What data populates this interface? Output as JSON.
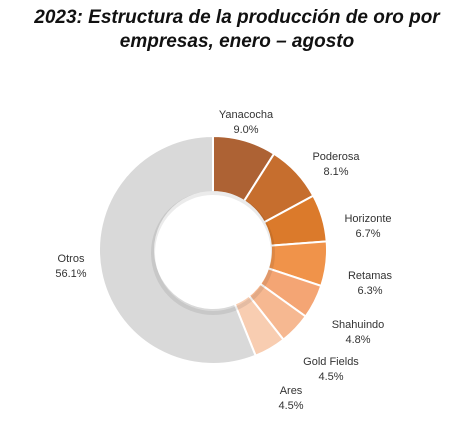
{
  "chart_data": {
    "type": "pie",
    "title_line1": "2023: Estructura de la producción de oro por",
    "title_line2": "empresas, enero – agosto",
    "donut": true,
    "slices": [
      {
        "name": "Yanacocha",
        "value": 9.0,
        "label": "9.0%",
        "color": "#ad6234"
      },
      {
        "name": "Poderosa",
        "value": 8.1,
        "label": "8.1%",
        "color": "#c66e2e"
      },
      {
        "name": "Horizonte",
        "value": 6.7,
        "label": "6.7%",
        "color": "#db7a2b"
      },
      {
        "name": "Retamas",
        "value": 6.3,
        "label": "6.3%",
        "color": "#f0934a"
      },
      {
        "name": "Shahuindo",
        "value": 4.8,
        "label": "4.8%",
        "color": "#f4a574"
      },
      {
        "name": "Gold Fields",
        "value": 4.5,
        "label": "4.5%",
        "color": "#f6b891"
      },
      {
        "name": "Ares",
        "value": 4.5,
        "label": "4.5%",
        "color": "#f8cdb1"
      },
      {
        "name": "Otros",
        "value": 56.1,
        "label": "56.1%",
        "color": "#d9d9d9"
      }
    ]
  }
}
